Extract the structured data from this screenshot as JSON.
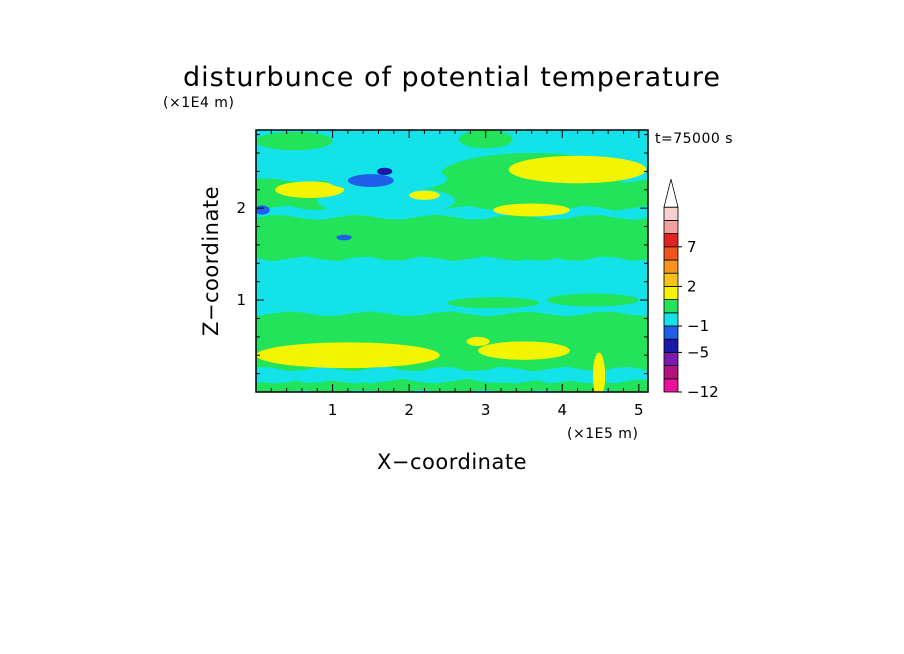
{
  "chart_data": {
    "type": "heatmap",
    "title": "disturbunce of potential temperature",
    "xlabel": "X−coordinate",
    "ylabel": "Z−coordinate",
    "x_unit": "(×1E5 m)",
    "y_unit": "(×1E4 m)",
    "time_label": "t=75000 s",
    "xlim": [
      0,
      5.12
    ],
    "ylim": [
      0,
      2.85
    ],
    "x_ticks": [
      {
        "value": 1,
        "label": "1"
      },
      {
        "value": 2,
        "label": "2"
      },
      {
        "value": 3,
        "label": "3"
      },
      {
        "value": 4,
        "label": "4"
      },
      {
        "value": 5,
        "label": "5"
      }
    ],
    "y_ticks": [
      {
        "value": 1,
        "label": "1"
      },
      {
        "value": 2,
        "label": "2"
      }
    ],
    "colorbar": {
      "levels": [
        -12,
        -9,
        -7,
        -5,
        -3,
        -1,
        0,
        1,
        2,
        3,
        5,
        7,
        9,
        11
      ],
      "colors": [
        "#e8119a",
        "#b3127e",
        "#7a1ab0",
        "#1a1aa6",
        "#1f5ee8",
        "#13e3e8",
        "#22e35a",
        "#f4f400",
        "#f6c21a",
        "#f7941e",
        "#f0561a",
        "#e22222",
        "#f2a0a0",
        "#f7d0d0"
      ],
      "extend_max_color": "#ffffff",
      "labels": [
        {
          "value": -12,
          "label": "−12"
        },
        {
          "value": -5,
          "label": "−5"
        },
        {
          "value": -1,
          "label": "−1"
        },
        {
          "value": 2,
          "label": "2"
        },
        {
          "value": 7,
          "label": "7"
        }
      ]
    },
    "background_value": -0.5,
    "field_features": [
      {
        "kind": "band",
        "x": [
          0,
          5.12
        ],
        "z": [
          0.0,
          0.12
        ],
        "value": 0.5
      },
      {
        "kind": "band",
        "x": [
          0,
          5.12
        ],
        "z": [
          0.12,
          0.25
        ],
        "value": -0.5
      },
      {
        "kind": "band",
        "x": [
          0,
          5.12
        ],
        "z": [
          0.25,
          0.85
        ],
        "value": 0.5
      },
      {
        "kind": "band",
        "x": [
          0,
          5.12
        ],
        "z": [
          1.45,
          1.9
        ],
        "value": 0.5
      },
      {
        "kind": "band",
        "x": [
          0,
          5.12
        ],
        "z": [
          2.0,
          2.3
        ],
        "value": 0.5
      },
      {
        "kind": "blob",
        "cx": 1.2,
        "cz": 0.4,
        "rx": 1.2,
        "rz": 0.14,
        "value": 1.5
      },
      {
        "kind": "blob",
        "cx": 3.5,
        "cz": 0.45,
        "rx": 0.6,
        "rz": 0.1,
        "value": 1.5
      },
      {
        "kind": "blob",
        "cx": 2.9,
        "cz": 0.55,
        "rx": 0.15,
        "rz": 0.05,
        "value": 1.5
      },
      {
        "kind": "blob",
        "cx": 3.1,
        "cz": 0.97,
        "rx": 0.6,
        "rz": 0.06,
        "value": 0.5
      },
      {
        "kind": "blob",
        "cx": 4.4,
        "cz": 1.0,
        "rx": 0.6,
        "rz": 0.07,
        "value": 0.5
      },
      {
        "kind": "blob",
        "cx": 3.7,
        "cz": 1.5,
        "rx": 0.3,
        "rz": 0.07,
        "value": 0.5
      },
      {
        "kind": "blob",
        "cx": 1.7,
        "cz": 2.08,
        "rx": 0.9,
        "rz": 0.16,
        "value": -0.5
      },
      {
        "kind": "blob",
        "cx": 3.6,
        "cz": 2.35,
        "rx": 1.2,
        "rz": 0.25,
        "value": 0.5
      },
      {
        "kind": "blob",
        "cx": 4.2,
        "cz": 2.42,
        "rx": 0.9,
        "rz": 0.15,
        "value": 1.5
      },
      {
        "kind": "blob",
        "cx": 3.6,
        "cz": 1.98,
        "rx": 0.5,
        "rz": 0.07,
        "value": 1.5
      },
      {
        "kind": "blob",
        "cx": 0.7,
        "cz": 2.2,
        "rx": 0.45,
        "rz": 0.09,
        "value": 1.5
      },
      {
        "kind": "blob",
        "cx": 2.2,
        "cz": 2.14,
        "rx": 0.2,
        "rz": 0.05,
        "value": 1.5
      },
      {
        "kind": "blob",
        "cx": 1.7,
        "cz": 2.32,
        "rx": 0.8,
        "rz": 0.14,
        "value": -0.5
      },
      {
        "kind": "blob",
        "cx": 1.5,
        "cz": 2.3,
        "rx": 0.3,
        "rz": 0.07,
        "value": -2
      },
      {
        "kind": "blob",
        "cx": 1.68,
        "cz": 2.4,
        "rx": 0.1,
        "rz": 0.04,
        "value": -4
      },
      {
        "kind": "blob",
        "cx": 0.08,
        "cz": 1.98,
        "rx": 0.1,
        "rz": 0.05,
        "value": -2
      },
      {
        "kind": "blob",
        "cx": 1.15,
        "cz": 1.68,
        "rx": 0.1,
        "rz": 0.03,
        "value": -2
      },
      {
        "kind": "blob",
        "cx": 0.5,
        "cz": 2.73,
        "rx": 0.5,
        "rz": 0.1,
        "value": 0.5
      },
      {
        "kind": "blob",
        "cx": 3.0,
        "cz": 2.75,
        "rx": 0.35,
        "rz": 0.1,
        "value": 0.5
      },
      {
        "kind": "blob",
        "cx": 4.48,
        "cz": 0.18,
        "rx": 0.08,
        "rz": 0.25,
        "value": 1.5
      }
    ]
  }
}
